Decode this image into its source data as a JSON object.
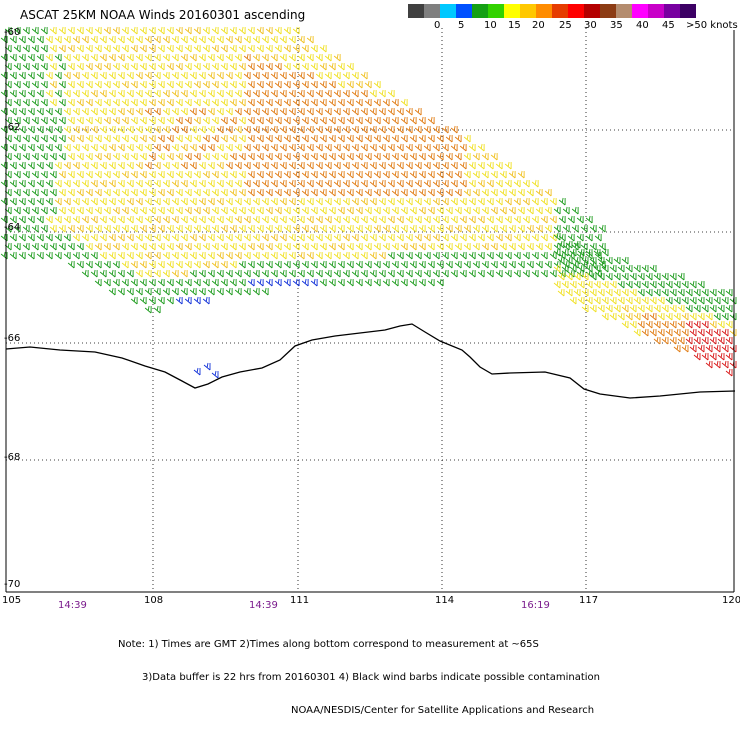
{
  "title": "ASCAT 25KM NOAA Winds 20160301 ascending",
  "legend": {
    "colors": [
      "#404040",
      "#7f7f7f",
      "#00c8ff",
      "#0050ff",
      "#14a014",
      "#32d200",
      "#ffff00",
      "#ffc800",
      "#ff8c00",
      "#e63c00",
      "#ff0000",
      "#b40000",
      "#8c3c14",
      "#b48c6e",
      "#ff00ff",
      "#c800c8",
      "#7800a0",
      "#3c0064"
    ],
    "labels": [
      "0",
      "5",
      "10",
      "15",
      "20",
      "25",
      "30",
      "35",
      "40",
      "45",
      ">50 knots"
    ]
  },
  "axes": {
    "lon_labels": [
      "105",
      "108",
      "111",
      "114",
      "117",
      "120"
    ],
    "lat_labels": [
      "-60",
      "-62",
      "-64",
      "-66",
      "-68",
      "-70"
    ],
    "times": [
      "14:39",
      "14:39",
      "16:19"
    ]
  },
  "notes": [
    "Note: 1) Times are GMT 2)Times along bottom correspond to measurement at ~65S",
    "3)Data buffer is 22 hrs from 20160301 4) Black wind barbs indicate possible contamination",
    "NOAA/NESDIS/Center for Satellite Applications and Research"
  ],
  "colors": {
    "green": "#1a9a1a",
    "yellow": "#f0e020",
    "gold": "#f0c020",
    "orange": "#e07a10",
    "red": "#d81818",
    "blue": "#1030d8",
    "coast": "#000000"
  }
}
